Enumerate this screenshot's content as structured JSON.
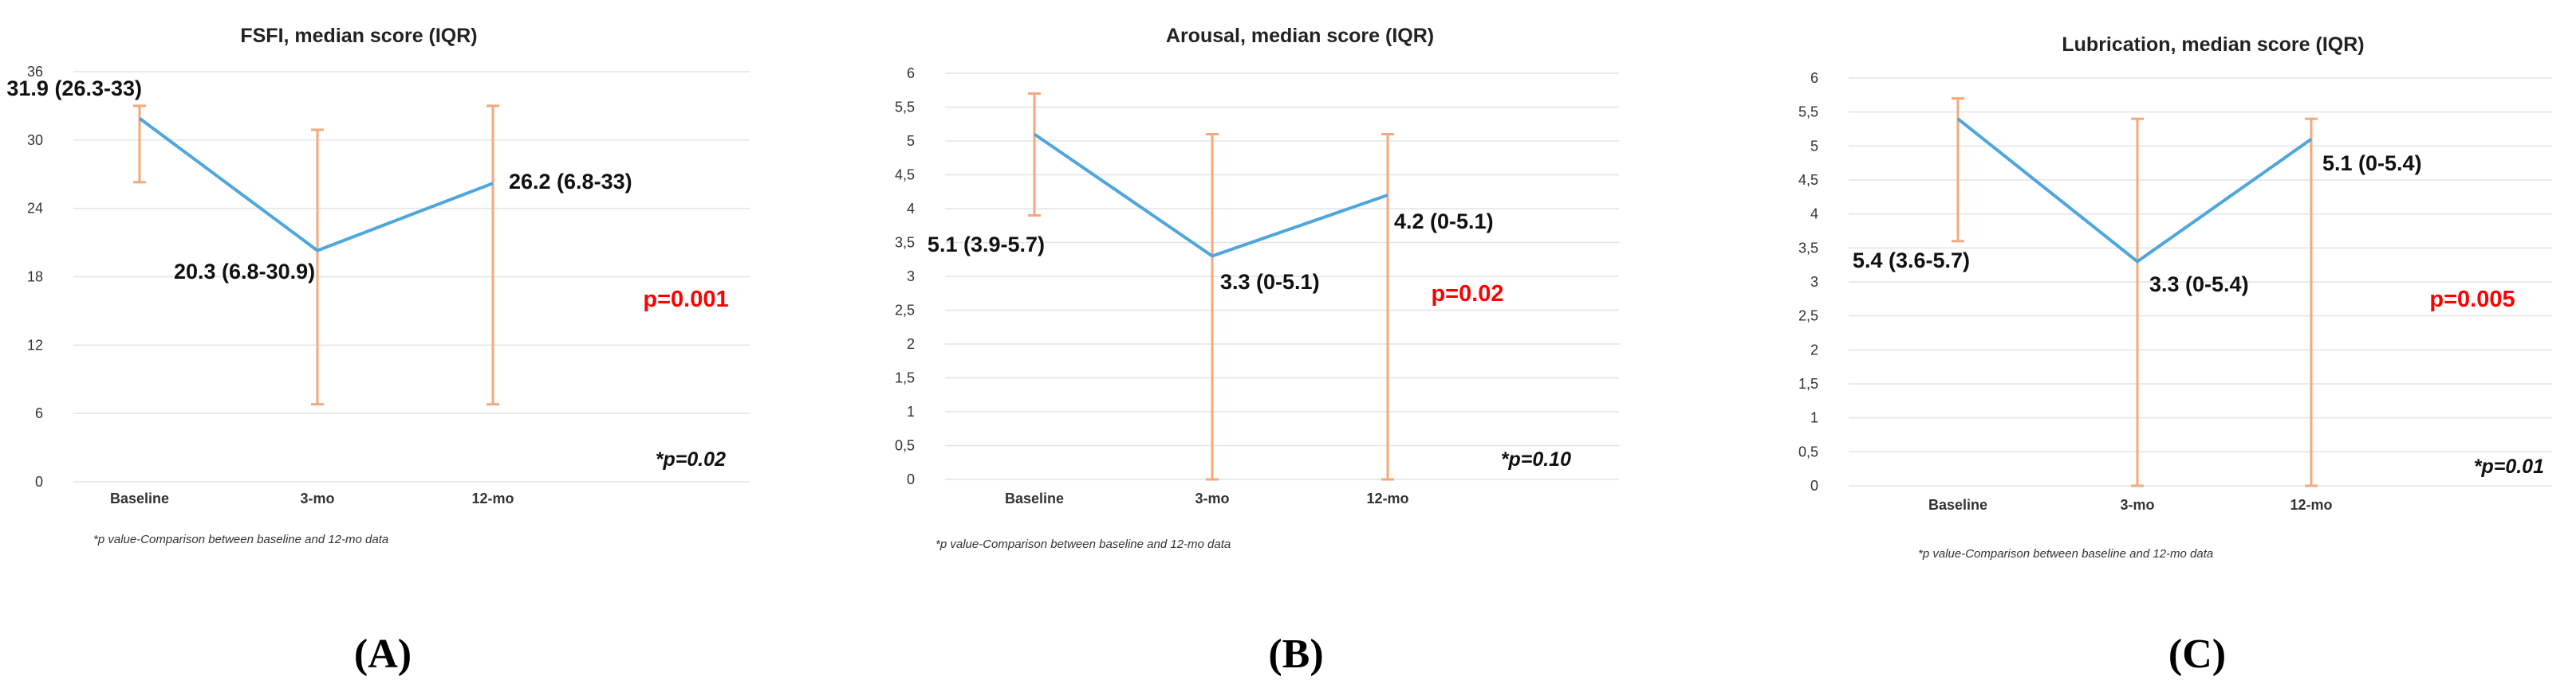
{
  "colors": {
    "line": "#4ea6dc",
    "error_bar": "#f4a87c",
    "grid": "#e4e4e4",
    "p_value": "#ff0000"
  },
  "chart_data": [
    {
      "type": "line",
      "panel_letter": "(A)",
      "title": "FSFI, median score (IQR)",
      "categories": [
        "Baseline",
        "3-mo",
        "12-mo"
      ],
      "values": [
        31.9,
        20.3,
        26.2
      ],
      "iqr_low": [
        26.3,
        6.8,
        6.8
      ],
      "iqr_high": [
        33,
        30.9,
        33
      ],
      "data_labels": [
        "31.9 (26.3-33)",
        "20.3 (6.8-30.9)",
        "26.2 (6.8-33)"
      ],
      "ylim": [
        0,
        36
      ],
      "yticks": [
        "0",
        "6",
        "12",
        "18",
        "24",
        "30",
        "36"
      ],
      "grid": true,
      "p_value": "p=0.001",
      "star_p_value": "*p=0.02",
      "footnote": "*p value-Comparison between baseline and 12-mo data"
    },
    {
      "type": "line",
      "panel_letter": "(B)",
      "title": "Arousal, median score (IQR)",
      "categories": [
        "Baseline",
        "3-mo",
        "12-mo"
      ],
      "values": [
        5.1,
        3.3,
        4.2
      ],
      "iqr_low": [
        3.9,
        0,
        0
      ],
      "iqr_high": [
        5.7,
        5.1,
        5.1
      ],
      "data_labels": [
        "5.1 (3.9-5.7)",
        "3.3 (0-5.1)",
        "4.2 (0-5.1)"
      ],
      "ylim": [
        0,
        6
      ],
      "yticks": [
        "0",
        "0,5",
        "1",
        "1,5",
        "2",
        "2,5",
        "3",
        "3,5",
        "4",
        "4,5",
        "5",
        "5,5",
        "6"
      ],
      "grid": true,
      "p_value": "p=0.02",
      "star_p_value": "*p=0.10",
      "footnote": "*p value-Comparison between baseline and 12-mo data"
    },
    {
      "type": "line",
      "panel_letter": "(C)",
      "title": "Lubrication, median score (IQR)",
      "categories": [
        "Baseline",
        "3-mo",
        "12-mo"
      ],
      "values": [
        5.4,
        3.3,
        5.1
      ],
      "iqr_low": [
        3.6,
        0,
        0
      ],
      "iqr_high": [
        5.7,
        5.4,
        5.4
      ],
      "data_labels": [
        "5.4 (3.6-5.7)",
        "3.3 (0-5.4)",
        "5.1 (0-5.4)"
      ],
      "ylim": [
        0,
        6
      ],
      "yticks": [
        "0",
        "0,5",
        "1",
        "1,5",
        "2",
        "2,5",
        "3",
        "3,5",
        "4",
        "4,5",
        "5",
        "5,5",
        "6"
      ],
      "grid": true,
      "p_value": "p=0.005",
      "star_p_value": "*p=0.01",
      "footnote": "*p value-Comparison between baseline and 12-mo data"
    }
  ]
}
